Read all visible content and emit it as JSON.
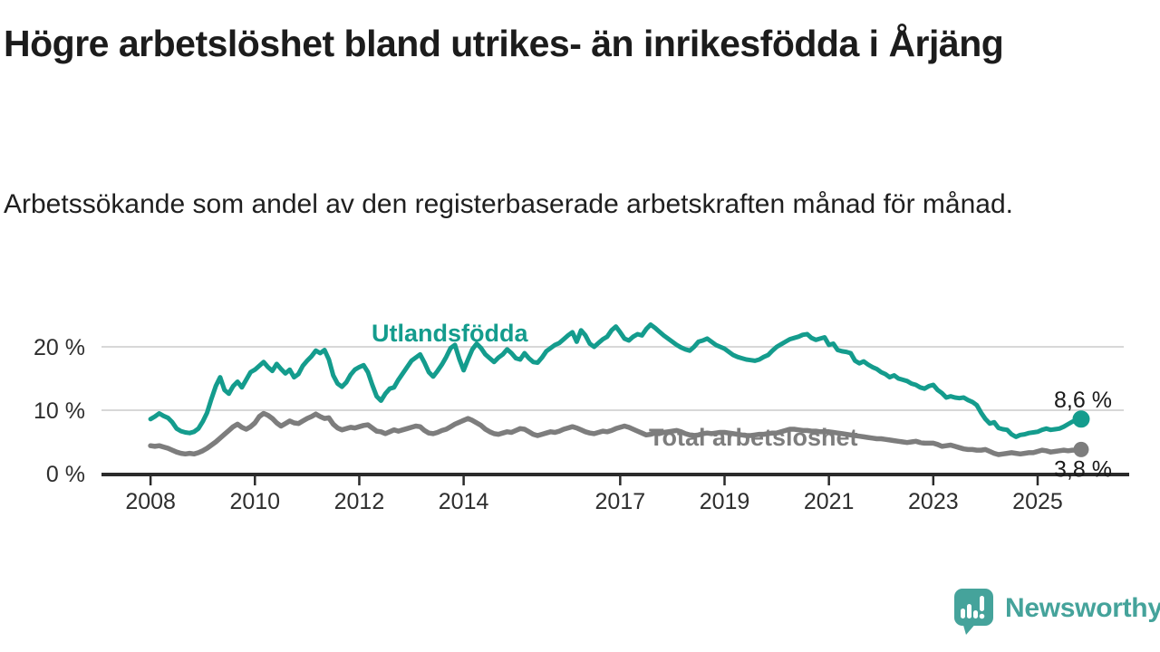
{
  "header": {
    "title": "Högre arbetslöshet bland utrikes- än inrikesfödda i Årjäng",
    "subtitle": "Arbetssökande som andel av den registerbaserade arbetskraften månad för månad."
  },
  "footer": {
    "brand": "Newsworthy",
    "brand_color": "#45a39b"
  },
  "colors": {
    "series_foreign": "#149c8d",
    "series_total": "#7d7d7d",
    "grid": "#d8d8d8",
    "axis": "#2b2b2b",
    "tick_label": "#2e2e2e",
    "end_label": "#1a1a1a"
  },
  "chart_data": {
    "type": "line",
    "title": "Högre arbetslöshet bland utrikes- än inrikesfödda i Årjäng",
    "xlabel": "",
    "ylabel": "",
    "x_axis": {
      "range": [
        2007.06,
        2026.65
      ],
      "ticks": [
        2008,
        2010,
        2012,
        2014,
        2017,
        2019,
        2021,
        2023,
        2025
      ],
      "tick_labels": [
        "2008",
        "2010",
        "2012",
        "2014",
        "2017",
        "2019",
        "2021",
        "2023",
        "2025"
      ]
    },
    "y_axis": {
      "range": [
        0,
        20
      ],
      "ticks": [
        0,
        10,
        20
      ],
      "tick_labels": [
        "0 %",
        "10 %",
        "20 %"
      ],
      "grid": true
    },
    "unit": "%",
    "frequency": "monthly",
    "series": [
      {
        "name": "Utlandsfödda",
        "color": "#149c8d",
        "start_year": 2008.0,
        "step_years": 0.0833333,
        "end_label": "8,6 %",
        "end_value": 8.6,
        "end_marker": true,
        "values": [
          8.6,
          9.0,
          9.5,
          9.1,
          8.8,
          8.1,
          7.1,
          6.7,
          6.5,
          6.4,
          6.6,
          7.1,
          8.2,
          9.6,
          11.8,
          13.8,
          15.2,
          13.2,
          12.6,
          13.8,
          14.5,
          13.6,
          14.8,
          16.0,
          16.4,
          17.0,
          17.6,
          16.8,
          16.2,
          17.3,
          16.5,
          15.8,
          16.4,
          15.2,
          15.7,
          17.0,
          17.8,
          18.5,
          19.4,
          19.0,
          19.5,
          18.0,
          15.5,
          14.2,
          13.7,
          14.4,
          15.6,
          16.4,
          16.8,
          17.1,
          16.0,
          14.0,
          12.2,
          11.5,
          12.6,
          13.4,
          13.6,
          14.8,
          15.8,
          16.8,
          17.8,
          18.3,
          18.8,
          17.5,
          16.0,
          15.3,
          16.2,
          17.2,
          18.4,
          19.8,
          20.3,
          18.1,
          16.3,
          18.0,
          19.6,
          20.5,
          19.8,
          18.8,
          18.2,
          17.6,
          18.3,
          18.8,
          19.6,
          19.0,
          18.2,
          18.0,
          19.0,
          18.2,
          17.6,
          17.5,
          18.3,
          19.3,
          19.8,
          20.3,
          20.6,
          21.2,
          21.8,
          22.3,
          20.8,
          22.6,
          21.8,
          20.5,
          20.0,
          20.6,
          21.2,
          21.6,
          22.6,
          23.2,
          22.3,
          21.3,
          21.0,
          21.6,
          22.0,
          21.8,
          22.8,
          23.5,
          23.0,
          22.4,
          21.8,
          21.3,
          20.8,
          20.3,
          19.9,
          19.6,
          19.4,
          20.0,
          20.8,
          21.0,
          21.3,
          20.8,
          20.3,
          20.0,
          19.7,
          19.2,
          18.7,
          18.4,
          18.2,
          18.0,
          17.9,
          17.8,
          18.0,
          18.4,
          18.7,
          19.4,
          20.0,
          20.4,
          20.8,
          21.2,
          21.4,
          21.6,
          21.9,
          22.0,
          21.4,
          21.1,
          21.3,
          21.5,
          20.3,
          20.5,
          19.5,
          19.3,
          19.2,
          19.0,
          17.8,
          17.4,
          17.7,
          17.2,
          16.8,
          16.5,
          16.0,
          15.7,
          15.2,
          15.5,
          15.0,
          14.8,
          14.6,
          14.2,
          14.0,
          13.6,
          13.4,
          13.8,
          14.0,
          13.2,
          12.7,
          12.0,
          12.2,
          12.0,
          11.9,
          12.0,
          11.6,
          11.3,
          10.8,
          9.6,
          8.6,
          7.9,
          8.1,
          7.2,
          7.0,
          6.9,
          6.2,
          5.8,
          6.1,
          6.2,
          6.4,
          6.5,
          6.6,
          6.9,
          7.1,
          6.9,
          7.0,
          7.1,
          7.4,
          7.8,
          8.2,
          8.4,
          8.6
        ]
      },
      {
        "name": "Total arbetslöshet",
        "color": "#7d7d7d",
        "start_year": 2008.0,
        "step_years": 0.0833333,
        "end_label": "3,8 %",
        "end_value": 3.8,
        "end_marker": true,
        "values": [
          4.4,
          4.3,
          4.4,
          4.2,
          4.0,
          3.7,
          3.4,
          3.2,
          3.1,
          3.2,
          3.1,
          3.3,
          3.6,
          4.0,
          4.5,
          5.0,
          5.6,
          6.2,
          6.8,
          7.4,
          7.8,
          7.3,
          7.0,
          7.4,
          8.0,
          9.0,
          9.5,
          9.2,
          8.7,
          8.0,
          7.5,
          7.9,
          8.3,
          8.0,
          7.9,
          8.3,
          8.7,
          9.0,
          9.4,
          9.0,
          8.7,
          8.8,
          7.8,
          7.2,
          6.9,
          7.1,
          7.3,
          7.2,
          7.4,
          7.6,
          7.7,
          7.2,
          6.7,
          6.6,
          6.3,
          6.6,
          6.9,
          6.7,
          6.9,
          7.1,
          7.3,
          7.5,
          7.4,
          6.8,
          6.4,
          6.3,
          6.5,
          6.8,
          7.0,
          7.4,
          7.8,
          8.1,
          8.4,
          8.7,
          8.4,
          8.0,
          7.6,
          7.0,
          6.6,
          6.3,
          6.2,
          6.4,
          6.6,
          6.5,
          6.8,
          7.1,
          7.0,
          6.6,
          6.2,
          6.0,
          6.2,
          6.4,
          6.6,
          6.5,
          6.7,
          7.0,
          7.2,
          7.4,
          7.2,
          6.9,
          6.6,
          6.4,
          6.3,
          6.5,
          6.7,
          6.6,
          6.8,
          7.1,
          7.3,
          7.5,
          7.3,
          7.0,
          6.7,
          6.4,
          6.1,
          6.2,
          6.4,
          6.3,
          6.5,
          6.6,
          6.7,
          6.8,
          6.6,
          6.3,
          6.1,
          6.0,
          6.1,
          6.3,
          6.4,
          6.3,
          6.4,
          6.5,
          6.5,
          6.4,
          6.3,
          6.2,
          6.1,
          6.0,
          6.0,
          6.1,
          6.2,
          6.2,
          6.3,
          6.4,
          6.4,
          6.6,
          6.8,
          7.0,
          7.0,
          6.9,
          6.8,
          6.8,
          6.7,
          6.7,
          6.6,
          6.6,
          6.6,
          6.5,
          6.4,
          6.3,
          6.2,
          6.1,
          6.0,
          5.9,
          5.8,
          5.7,
          5.6,
          5.5,
          5.5,
          5.4,
          5.3,
          5.2,
          5.1,
          5.0,
          4.9,
          5.0,
          5.1,
          4.9,
          4.8,
          4.8,
          4.8,
          4.6,
          4.3,
          4.4,
          4.5,
          4.3,
          4.1,
          3.9,
          3.8,
          3.8,
          3.7,
          3.7,
          3.8,
          3.5,
          3.2,
          3.0,
          3.1,
          3.2,
          3.3,
          3.2,
          3.1,
          3.2,
          3.3,
          3.3,
          3.5,
          3.7,
          3.6,
          3.4,
          3.5,
          3.6,
          3.7,
          3.6,
          3.7,
          3.7,
          3.8
        ]
      }
    ],
    "legend_position": "inline-labels"
  }
}
